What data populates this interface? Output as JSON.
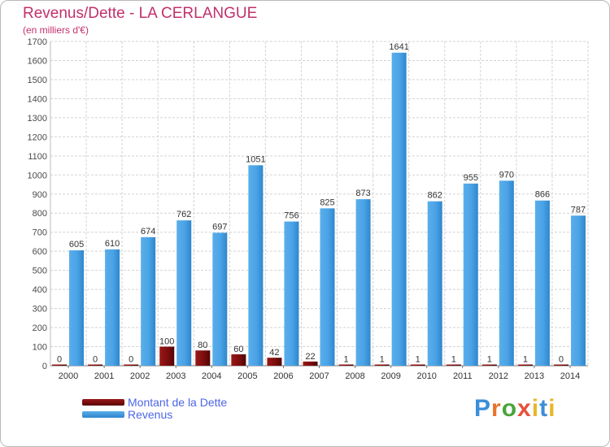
{
  "chart_data": {
    "type": "bar",
    "title": "Revenus/Dette - LA CERLANGUE",
    "subtitle": "(en milliers d'€)",
    "categories": [
      "2000",
      "2001",
      "2002",
      "2003",
      "2004",
      "2005",
      "2006",
      "2007",
      "2008",
      "2009",
      "2010",
      "2011",
      "2012",
      "2013",
      "2014"
    ],
    "series": [
      {
        "name": "Montant de la Dette",
        "color": "#7a0c0c",
        "values": [
          0,
          0,
          0,
          100,
          80,
          60,
          42,
          22,
          1,
          1,
          1,
          1,
          1,
          1,
          0
        ]
      },
      {
        "name": "Revenus",
        "color": "#3d9be0",
        "values": [
          605,
          610,
          674,
          762,
          697,
          1051,
          756,
          825,
          873,
          1641,
          862,
          955,
          970,
          866,
          787
        ]
      }
    ],
    "ylim": [
      0,
      1700
    ],
    "yticks": [
      0,
      100,
      200,
      300,
      400,
      500,
      600,
      700,
      800,
      900,
      1000,
      1100,
      1200,
      1300,
      1400,
      1500,
      1600,
      1700
    ],
    "grid": true,
    "legend_position": "bottom-left"
  },
  "logo": {
    "p": "P",
    "r": "r",
    "o": "o",
    "x": "x",
    "i": "i",
    "t": "t",
    "i2": "i"
  }
}
